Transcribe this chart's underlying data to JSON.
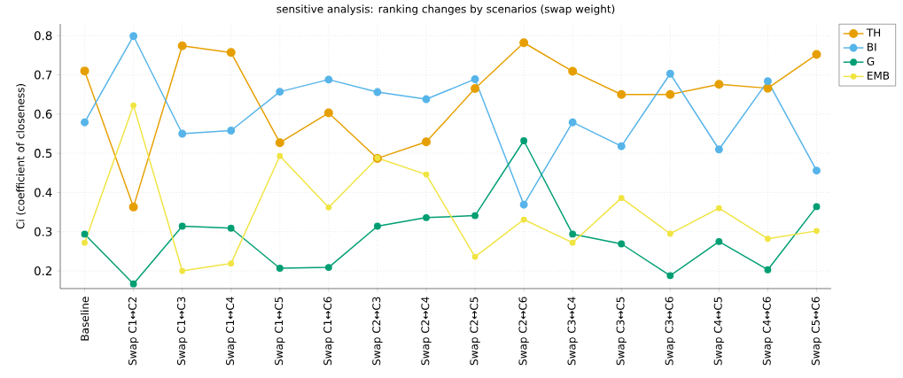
{
  "chart_data": {
    "type": "line",
    "title": "sensitive analysis: ranking changes by scenarios (swap weight)",
    "ylabel": "Ci (coefficient of closeness)",
    "categories": [
      "Baseline",
      "Swap C1↔C2",
      "Swap C1↔C3",
      "Swap C1↔C4",
      "Swap C1↔C5",
      "Swap C1↔C6",
      "Swap C2↔C3",
      "Swap C2↔C4",
      "Swap C2↔C5",
      "Swap C2↔C6",
      "Swap C3↔C4",
      "Swap C3↔C5",
      "Swap C3↔C6",
      "Swap C4↔C5",
      "Swap C4↔C6",
      "Swap C5↔C6"
    ],
    "series": [
      {
        "name": "TH",
        "color": "#e69f00",
        "values": [
          0.71,
          0.363,
          0.774,
          0.757,
          0.527,
          0.603,
          0.487,
          0.529,
          0.665,
          0.782,
          0.709,
          0.65,
          0.65,
          0.676,
          0.666,
          0.752
        ]
      },
      {
        "name": "BI",
        "color": "#56b4e9",
        "values": [
          0.579,
          0.799,
          0.55,
          0.558,
          0.657,
          0.688,
          0.656,
          0.638,
          0.689,
          0.369,
          0.579,
          0.518,
          0.703,
          0.51,
          0.684,
          0.456
        ]
      },
      {
        "name": "G",
        "color": "#009e73",
        "values": [
          0.294,
          0.167,
          0.314,
          0.309,
          0.207,
          0.209,
          0.314,
          0.336,
          0.341,
          0.532,
          0.294,
          0.269,
          0.188,
          0.275,
          0.203,
          0.364
        ]
      },
      {
        "name": "EMB",
        "color": "#f0e442",
        "values": [
          0.272,
          0.622,
          0.2,
          0.219,
          0.493,
          0.362,
          0.488,
          0.446,
          0.236,
          0.331,
          0.272,
          0.386,
          0.295,
          0.36,
          0.282,
          0.302
        ]
      }
    ],
    "ylim": [
      0.155,
      0.83
    ],
    "yticks": [
      0.2,
      0.3,
      0.4,
      0.5,
      0.6,
      0.7,
      0.8
    ],
    "grid": true,
    "legend": "top right",
    "marker": "circle",
    "line_style": "solid"
  }
}
